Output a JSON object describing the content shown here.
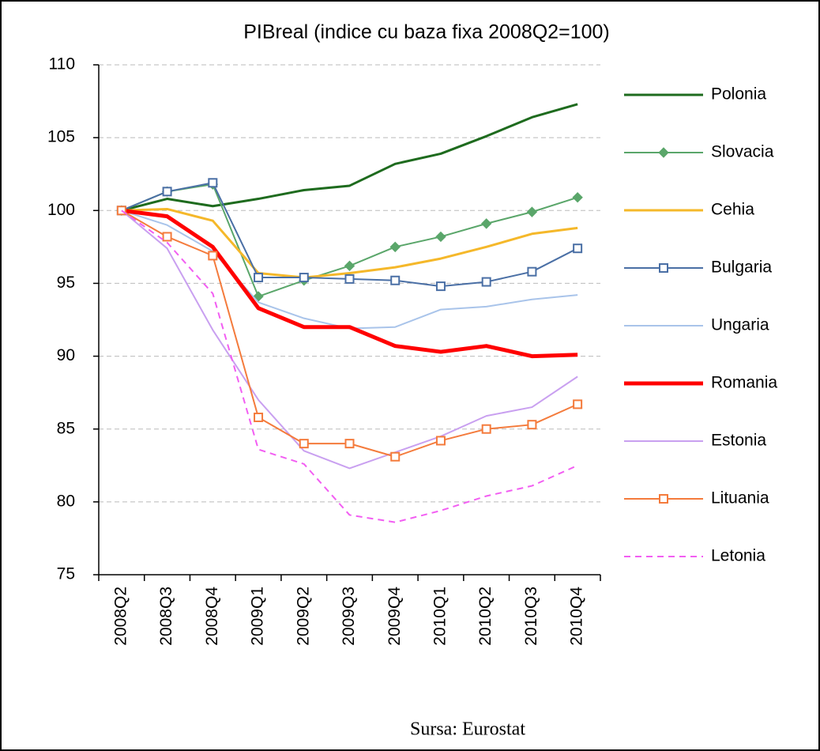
{
  "chart_data": {
    "type": "line",
    "title": "PIBreal (indice cu baza fixa 2008Q2=100)",
    "source": "Sursa: Eurostat",
    "categories": [
      "2008Q2",
      "2008Q3",
      "2008Q4",
      "2009Q1",
      "2009Q2",
      "2009Q3",
      "2009Q4",
      "2010Q1",
      "2010Q2",
      "2010Q3",
      "2010Q4"
    ],
    "ylim": [
      75,
      110
    ],
    "yticks": [
      75,
      80,
      85,
      90,
      95,
      100,
      105,
      110
    ],
    "grid": true,
    "legend": "right",
    "series": [
      {
        "name": "Polonia",
        "color": "#1e6b1e",
        "line_width": 3,
        "values": [
          100,
          100.8,
          100.3,
          100.8,
          101.4,
          101.7,
          103.2,
          103.9,
          105.1,
          106.4,
          107.3
        ]
      },
      {
        "name": "Slovacia",
        "color": "#5aa66a",
        "line_width": 2,
        "marker": "diamond",
        "values": [
          100,
          101.3,
          101.8,
          94.1,
          95.2,
          96.2,
          97.5,
          98.2,
          99.1,
          99.9,
          100.9
        ]
      },
      {
        "name": "Cehia",
        "color": "#f5b82a",
        "line_width": 3,
        "values": [
          100,
          100.1,
          99.3,
          95.7,
          95.4,
          95.7,
          96.1,
          96.7,
          97.5,
          98.4,
          98.8
        ]
      },
      {
        "name": "Bulgaria",
        "color": "#4a6fa5",
        "line_width": 2,
        "marker": "square",
        "values": [
          100,
          101.3,
          101.9,
          95.4,
          95.4,
          95.3,
          95.2,
          94.8,
          95.1,
          95.8,
          97.4
        ]
      },
      {
        "name": "Ungaria",
        "color": "#a9c4ea",
        "line_width": 2,
        "values": [
          100,
          99.0,
          97.2,
          93.7,
          92.6,
          91.9,
          92.0,
          93.2,
          93.4,
          93.9,
          94.2
        ]
      },
      {
        "name": "Romania",
        "color": "#ff0000",
        "line_width": 5,
        "values": [
          100,
          99.6,
          97.5,
          93.3,
          92.0,
          92.0,
          90.7,
          90.3,
          90.7,
          90.0,
          90.1
        ]
      },
      {
        "name": "Estonia",
        "color": "#c9a0f0",
        "line_width": 2,
        "values": [
          100,
          97.4,
          91.8,
          87.0,
          83.5,
          82.3,
          83.4,
          84.5,
          85.9,
          86.5,
          88.6
        ]
      },
      {
        "name": "Lituania",
        "color": "#f47b3c",
        "line_width": 2,
        "marker": "square",
        "values": [
          100,
          98.2,
          96.9,
          85.8,
          84.0,
          84.0,
          83.1,
          84.2,
          85.0,
          85.3,
          86.7
        ]
      },
      {
        "name": "Letonia",
        "color": "#f25ef2",
        "line_width": 2,
        "dash": true,
        "values": [
          100,
          97.8,
          94.3,
          83.6,
          82.6,
          79.1,
          78.6,
          79.4,
          80.4,
          81.1,
          82.5
        ]
      }
    ]
  }
}
